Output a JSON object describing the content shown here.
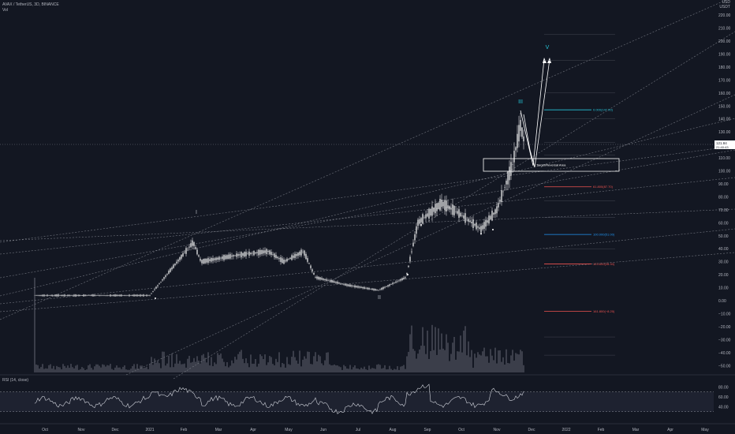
{
  "header": {
    "symbol_line": "AVAX / TetherUS, 3D, BINANCE",
    "volume_label": "Vol"
  },
  "top_right": [
    "USD",
    "USDT"
  ],
  "rsi": {
    "title": "RSI (14, close)",
    "levels": [
      "80.00",
      "60.00",
      "40.00"
    ]
  },
  "price_axis": [
    "220.00",
    "210.00",
    "200.00",
    "190.00",
    "180.00",
    "170.00",
    "160.00",
    "150.00",
    "140.00",
    "130.00",
    "120.00",
    "110.00",
    "100.00",
    "90.00",
    "80.00",
    "70.00",
    "60.00",
    "50.00",
    "40.00",
    "30.00",
    "20.00",
    "10.00",
    "0.00",
    "−10.00",
    "−20.00",
    "−30.00",
    "−40.00",
    "−50.00"
  ],
  "time_axis": [
    "Oct",
    "Nov",
    "Dec",
    "2021",
    "Feb",
    "Mar",
    "Apr",
    "May",
    "Jun",
    "Jul",
    "Aug",
    "Sep",
    "Oct",
    "Nov",
    "Dec",
    "2022",
    "Feb",
    "Mar",
    "Apr",
    "May"
  ],
  "price_tag": {
    "value": "121.84",
    "time": "21:40:43"
  },
  "annotation": {
    "box_label": "Target/Reversal Area"
  },
  "waves": [
    "I",
    "II",
    "III",
    "V"
  ],
  "fib_levels": [
    {
      "label": "0.000(147.00)",
      "price": 147,
      "color": "#26c6da"
    },
    {
      "label": "61.800(87.70)",
      "price": 87.7,
      "color": "#ef5350"
    },
    {
      "label": "100.000(51.00)",
      "price": 51,
      "color": "#2196f3"
    },
    {
      "label": "123.600(28.30)",
      "price": 28.3,
      "color": "#ef5350"
    },
    {
      "label": "161.800(−8.20)",
      "price": -8.2,
      "color": "#ef5350"
    }
  ],
  "colors": {
    "background": "#131722",
    "candles": "#ffffff",
    "volume": "#787b86",
    "rsi_line": "#d1d4dc",
    "accent_cyan": "#26c6da"
  },
  "chart_data": {
    "type": "candlestick",
    "x": [
      "Oct 2020",
      "Nov 2020",
      "Dec 2020",
      "Jan 2021",
      "Feb 2021",
      "Mar 2021",
      "Apr 2021",
      "May 2021",
      "Jun 2021",
      "Jul 2021",
      "Aug 2021",
      "Sep 2021",
      "Oct 2021",
      "Nov 2021",
      "Dec 2021"
    ],
    "series": [
      {
        "values": [
          4,
          4,
          4,
          5,
          40,
          28,
          32,
          30,
          15,
          12,
          20,
          70,
          60,
          95,
          120
        ]
      }
    ],
    "ylim": [
      -55,
      230
    ]
  }
}
